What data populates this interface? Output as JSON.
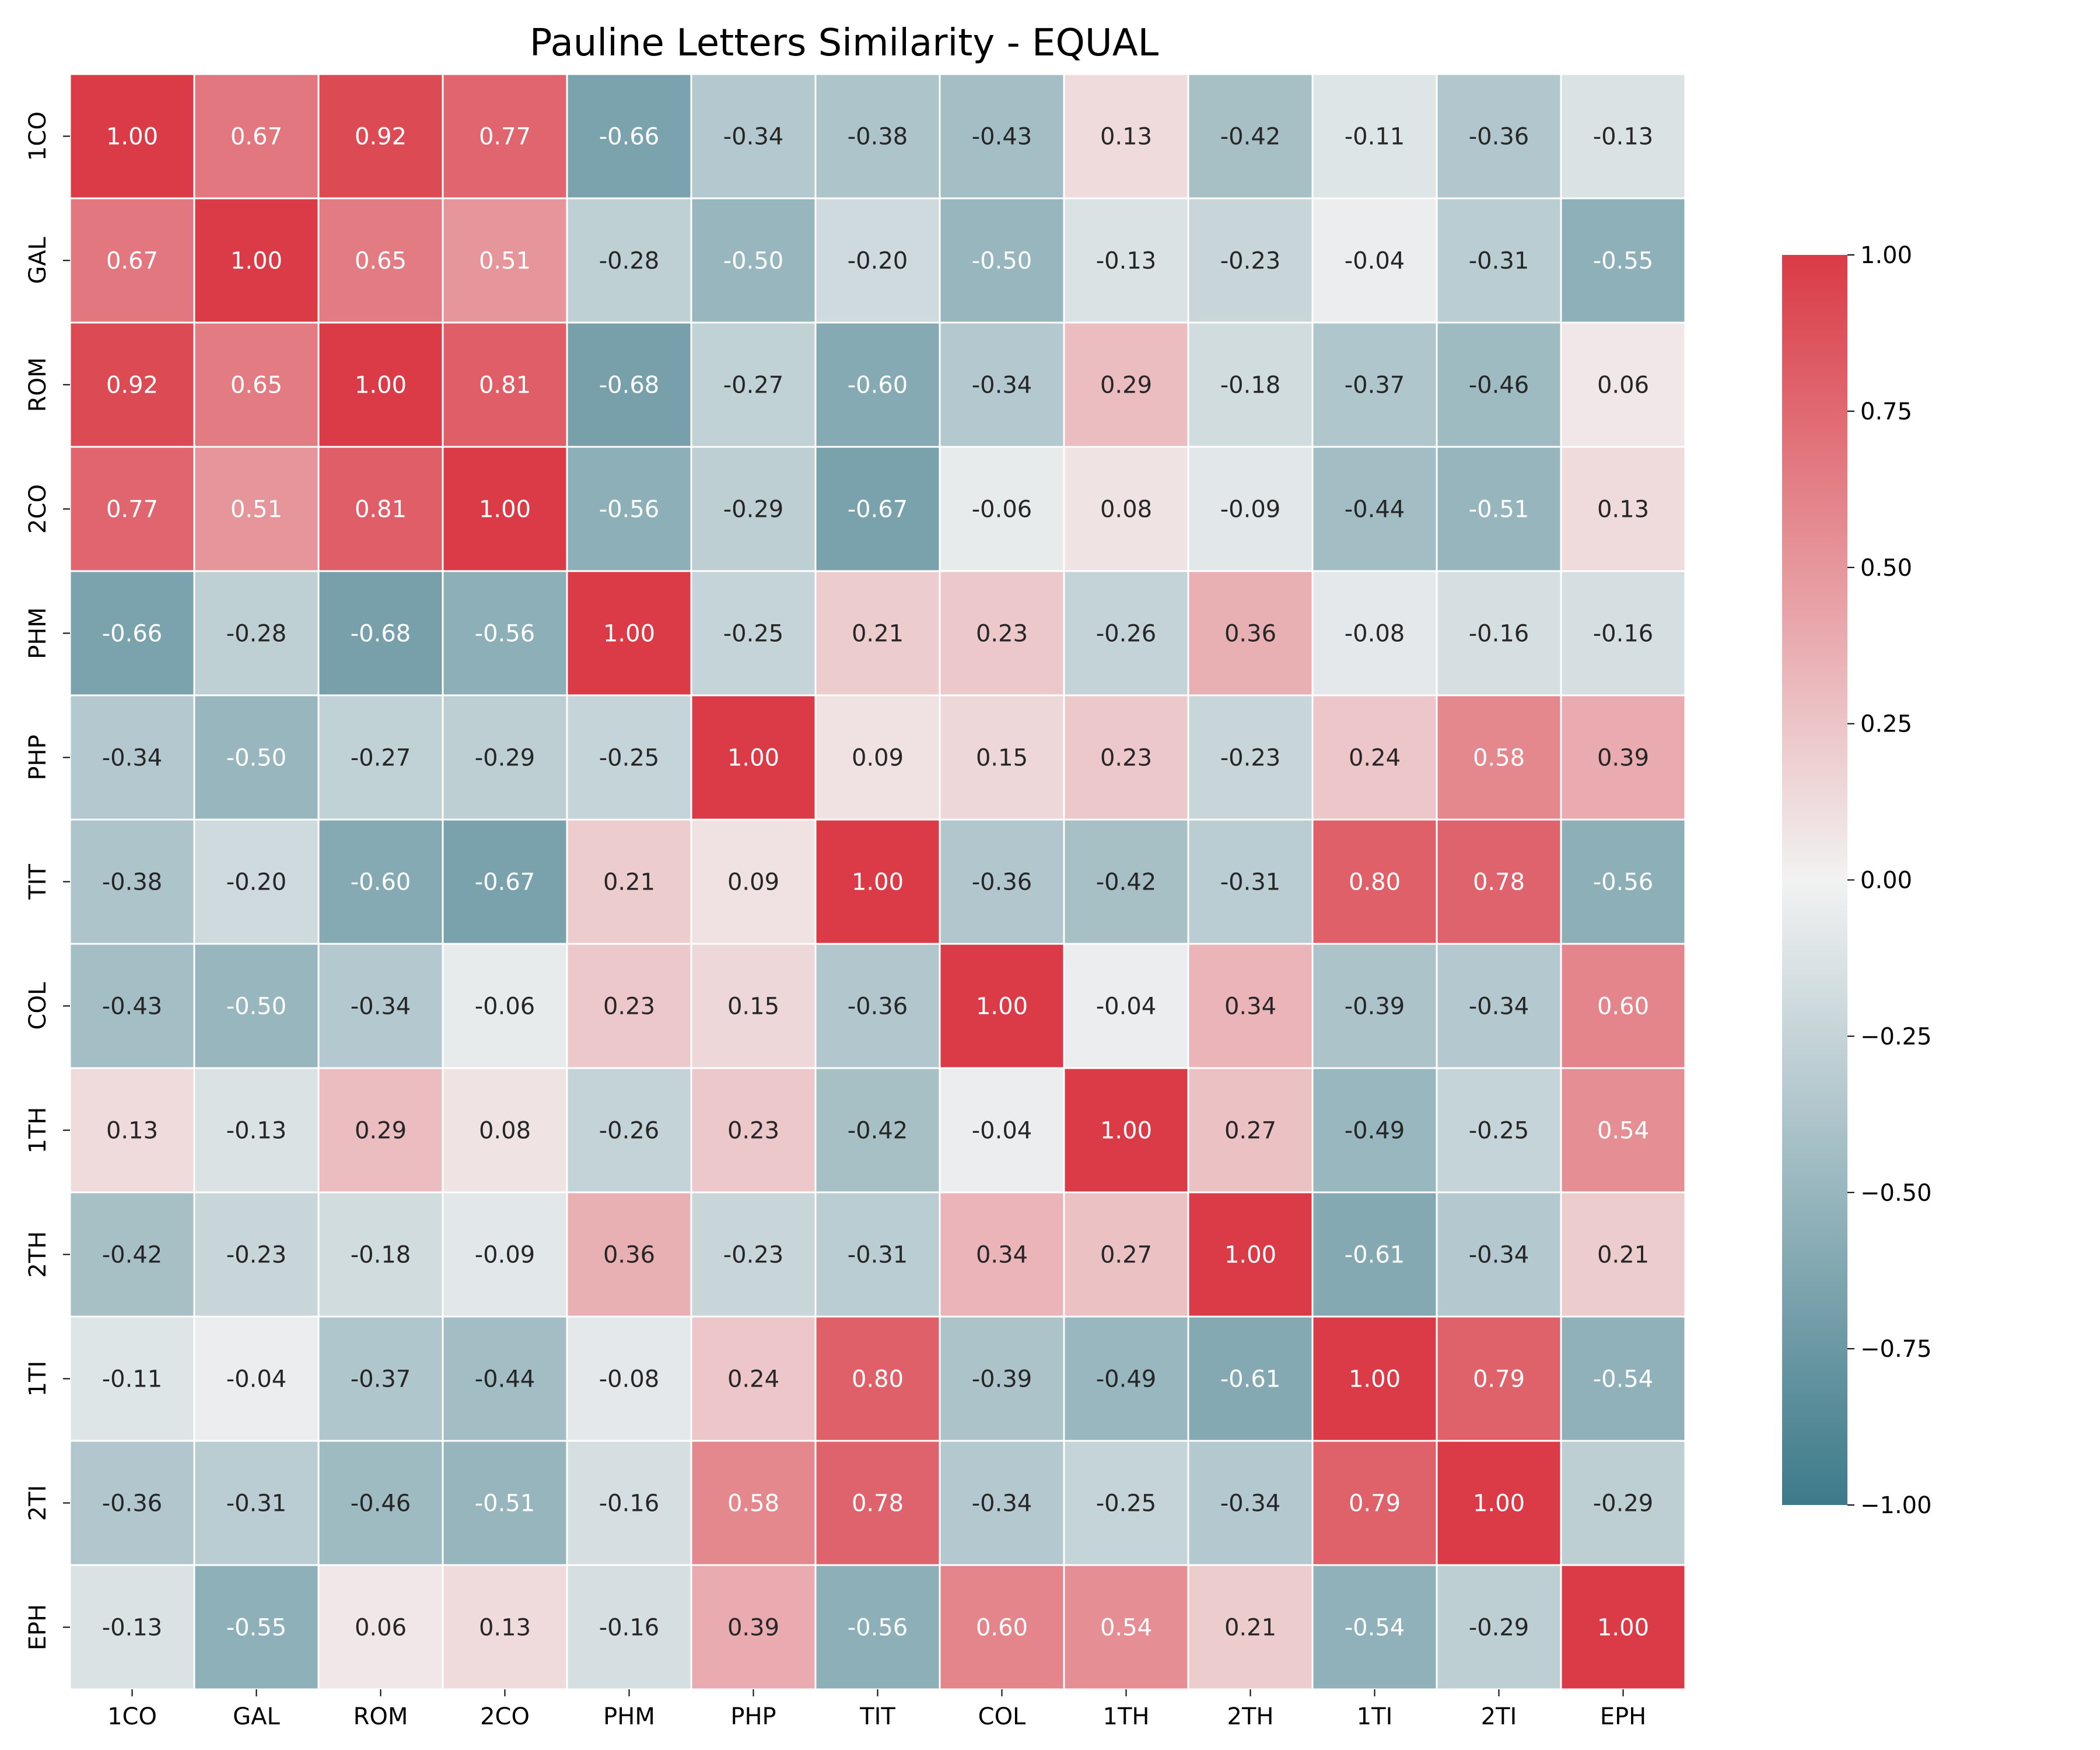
{
  "chart_data": {
    "type": "heatmap",
    "title": "Pauline Letters Similarity - EQUAL",
    "xlabel": "",
    "ylabel": "",
    "labels": [
      "1CO",
      "GAL",
      "ROM",
      "2CO",
      "PHM",
      "PHP",
      "TIT",
      "COL",
      "1TH",
      "2TH",
      "1TI",
      "2TI",
      "EPH"
    ],
    "matrix": [
      [
        1.0,
        0.67,
        0.92,
        0.77,
        -0.66,
        -0.34,
        -0.38,
        -0.43,
        0.13,
        -0.42,
        -0.11,
        -0.36,
        -0.13
      ],
      [
        0.67,
        1.0,
        0.65,
        0.51,
        -0.28,
        -0.5,
        -0.2,
        -0.5,
        -0.13,
        -0.23,
        -0.04,
        -0.31,
        -0.55
      ],
      [
        0.92,
        0.65,
        1.0,
        0.81,
        -0.68,
        -0.27,
        -0.6,
        -0.34,
        0.29,
        -0.18,
        -0.37,
        -0.46,
        0.06
      ],
      [
        0.77,
        0.51,
        0.81,
        1.0,
        -0.56,
        -0.29,
        -0.67,
        -0.06,
        0.08,
        -0.09,
        -0.44,
        -0.51,
        0.13
      ],
      [
        -0.66,
        -0.28,
        -0.68,
        -0.56,
        1.0,
        -0.25,
        0.21,
        0.23,
        -0.26,
        0.36,
        -0.08,
        -0.16,
        -0.16
      ],
      [
        -0.34,
        -0.5,
        -0.27,
        -0.29,
        -0.25,
        1.0,
        0.09,
        0.15,
        0.23,
        -0.23,
        0.24,
        0.58,
        0.39
      ],
      [
        -0.38,
        -0.2,
        -0.6,
        -0.67,
        0.21,
        0.09,
        1.0,
        -0.36,
        -0.42,
        -0.31,
        0.8,
        0.78,
        -0.56
      ],
      [
        -0.43,
        -0.5,
        -0.34,
        -0.06,
        0.23,
        0.15,
        -0.36,
        1.0,
        -0.04,
        0.34,
        -0.39,
        -0.34,
        0.6
      ],
      [
        0.13,
        -0.13,
        0.29,
        0.08,
        -0.26,
        0.23,
        -0.42,
        -0.04,
        1.0,
        0.27,
        -0.49,
        -0.25,
        0.54
      ],
      [
        -0.42,
        -0.23,
        -0.18,
        -0.09,
        0.36,
        -0.23,
        -0.31,
        0.34,
        0.27,
        1.0,
        -0.61,
        -0.34,
        0.21
      ],
      [
        -0.11,
        -0.04,
        -0.37,
        -0.44,
        -0.08,
        0.24,
        0.8,
        -0.39,
        -0.49,
        -0.61,
        1.0,
        0.79,
        -0.54
      ],
      [
        -0.36,
        -0.31,
        -0.46,
        -0.51,
        -0.16,
        0.58,
        0.78,
        -0.34,
        -0.25,
        -0.34,
        0.79,
        1.0,
        -0.29
      ],
      [
        -0.13,
        -0.55,
        0.06,
        0.13,
        -0.16,
        0.39,
        -0.56,
        0.6,
        0.54,
        0.21,
        -0.54,
        -0.29,
        1.0
      ]
    ],
    "value_format": "2 decimals",
    "colorbar": {
      "range": [
        -1.0,
        1.0
      ],
      "ticks": [
        1.0,
        0.75,
        0.5,
        0.25,
        0.0,
        -0.25,
        -0.5,
        -0.75,
        -1.0
      ],
      "tick_labels": [
        "1.00",
        "0.75",
        "0.50",
        "0.25",
        "0.00",
        "−0.25",
        "−0.50",
        "−0.75",
        "−1.00"
      ]
    },
    "colors": {
      "low": "#3d7a8a",
      "mid": "#f2f2f2",
      "high": "#da3b46",
      "cell_border": "#ffffff",
      "text_dark": "#262626",
      "text_light": "#ffffff"
    },
    "grid": false,
    "legend_position": "right"
  }
}
